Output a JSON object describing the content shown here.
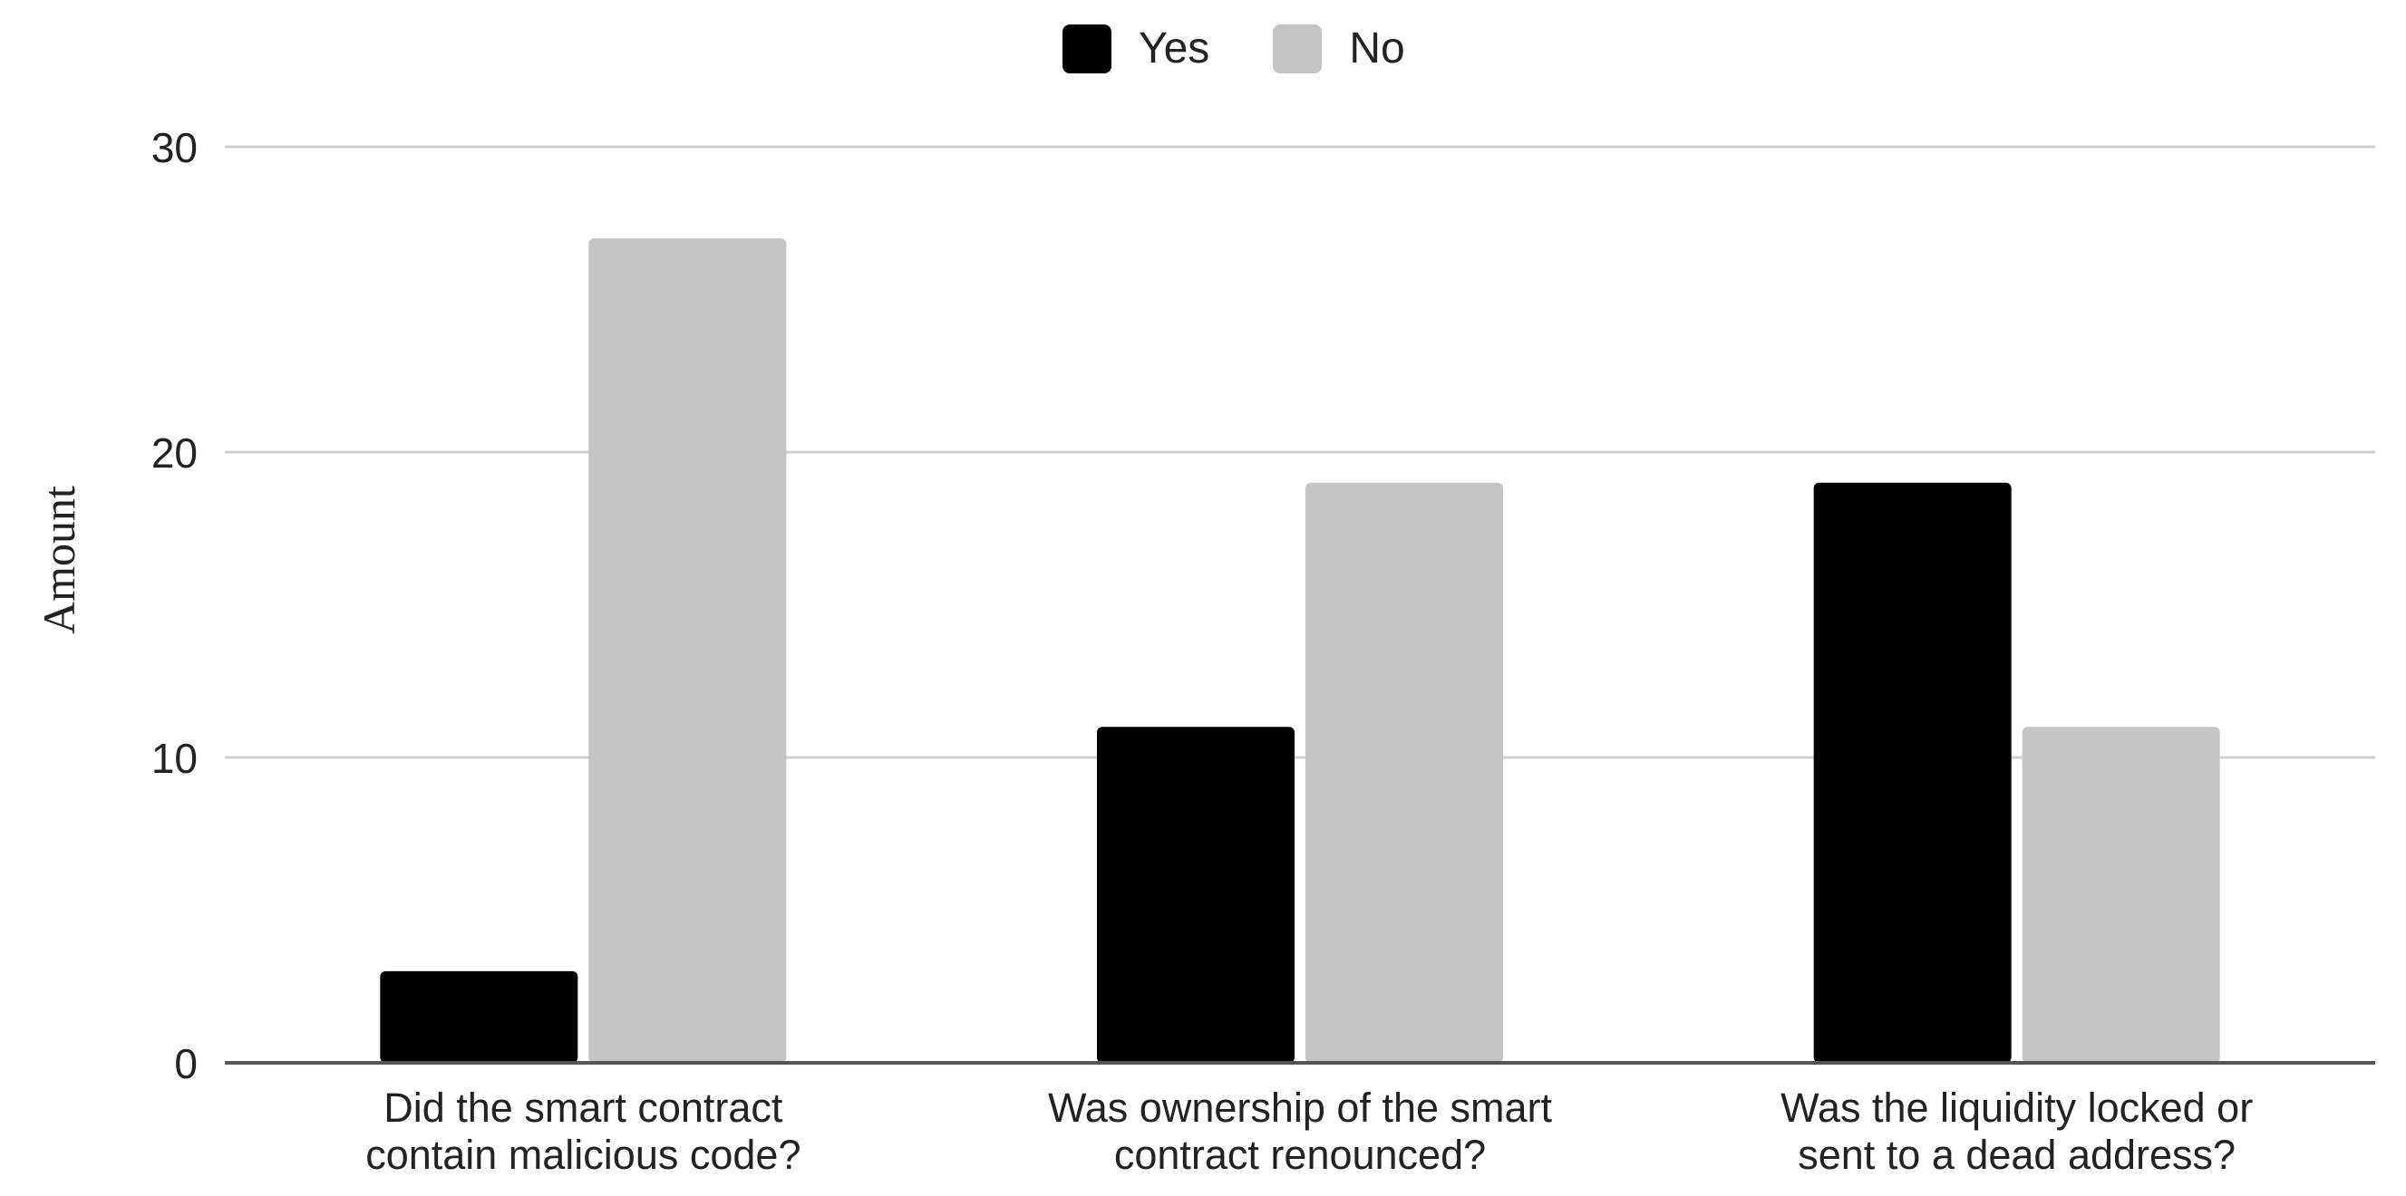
{
  "chart_data": {
    "type": "bar",
    "title": "",
    "xlabel": "",
    "ylabel": "Amount",
    "ylim": [
      0,
      30
    ],
    "yticks": [
      0,
      10,
      20,
      30
    ],
    "grid": true,
    "legend_position": "top-center",
    "categories": [
      [
        "Did the smart contract",
        "contain malicious code?"
      ],
      [
        "Was ownership of the smart",
        "contract renounced?"
      ],
      [
        "Was the liquidity locked or",
        "sent to a dead address?"
      ]
    ],
    "series": [
      {
        "name": "Yes",
        "color": "#000000",
        "values": [
          3,
          11,
          19
        ]
      },
      {
        "name": "No",
        "color": "#c4c4c4",
        "values": [
          27,
          19,
          11
        ]
      }
    ]
  }
}
